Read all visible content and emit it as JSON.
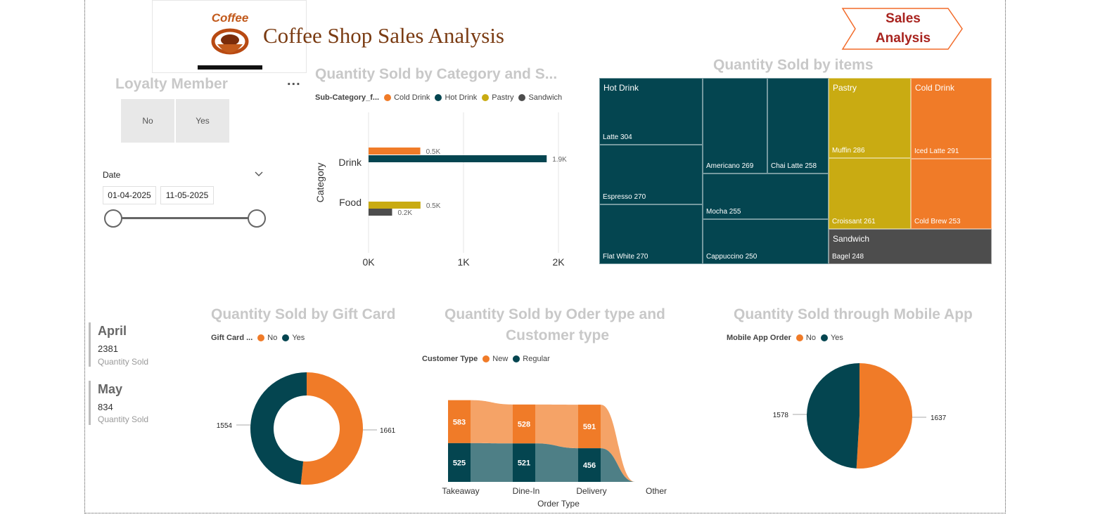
{
  "header": {
    "title": "Coffee Shop Sales Analysis",
    "logo_text": "Coffee",
    "nav_button": {
      "line1": "Sales",
      "line2": "Analysis"
    }
  },
  "loyalty": {
    "title": "Loyalty Member",
    "more": "...",
    "options": [
      "No",
      "Yes"
    ]
  },
  "date_slicer": {
    "label": "Date",
    "start": "01-04-2025",
    "end": "11-05-2025",
    "range_fraction": [
      0,
      1
    ]
  },
  "kpis": [
    {
      "month": "April",
      "value": "2381",
      "label": "Quantity Sold"
    },
    {
      "month": "May",
      "value": "834",
      "label": "Quantity Sold"
    }
  ],
  "colors": {
    "cold_drink": "#F07B28",
    "hot_drink": "#044550",
    "pastry": "#C9AB12",
    "sandwich": "#4D4D4D",
    "light_orange": "#F5A367",
    "light_teal": "#4E7F86"
  },
  "bar_chart": {
    "title": "Quantity Sold by Category and S...",
    "legend_title": "Sub-Category_f...",
    "legend": [
      "Cold Drink",
      "Hot Drink",
      "Pastry",
      "Sandwich"
    ],
    "ylabel": "Category",
    "xticks": [
      "0K",
      "1K",
      "2K"
    ],
    "bar_labels": [
      "0.5K",
      "1.9K",
      "0.5K",
      "0.2K"
    ]
  },
  "treemap": {
    "title": "Quantity Sold by items",
    "groups": [
      "Hot Drink",
      "Pastry",
      "Cold Drink",
      "Sandwich"
    ],
    "items": {
      "latte": "Latte 304",
      "espresso": "Espresso 270",
      "flat_white": "Flat White 270",
      "americano": "Americano 269",
      "chai_latte": "Chai Latte 258",
      "mocha": "Mocha 255",
      "cappuccino": "Cappuccino 250",
      "muffin": "Muffin 286",
      "croissant": "Croissant 261",
      "iced_latte": "Iced Latte 291",
      "cold_brew": "Cold Brew 253",
      "bagel": "Bagel 248"
    }
  },
  "gift_card": {
    "title": "Quantity Sold by Gift Card",
    "legend_title": "Gift Card ...",
    "legend": [
      "No",
      "Yes"
    ],
    "labels": {
      "no": "1661",
      "yes": "1554"
    }
  },
  "order_type": {
    "title_line1": "Quantity Sold by Oder type and",
    "title_line2": "Customer type",
    "legend_title": "Customer Type",
    "legend": [
      "New",
      "Regular"
    ],
    "xlabel": "Order Type",
    "categories": [
      "Takeaway",
      "Dine-In",
      "Delivery",
      "Other"
    ],
    "labels_new": [
      "583",
      "528",
      "591"
    ],
    "labels_regular": [
      "525",
      "521",
      "456"
    ]
  },
  "mobile_app": {
    "title": "Quantity Sold through Mobile App",
    "legend_title": "Mobile App Order",
    "legend": [
      "No",
      "Yes"
    ],
    "labels": {
      "no": "1637",
      "yes": "1578"
    }
  },
  "chart_data": [
    {
      "type": "bar",
      "title": "Quantity Sold by Category and S...",
      "ylabel": "Category",
      "categories": [
        "Drink",
        "Food"
      ],
      "series": [
        {
          "name": "Cold Drink",
          "values": [
            545,
            0
          ]
        },
        {
          "name": "Hot Drink",
          "values": [
            1876,
            0
          ]
        },
        {
          "name": "Pastry",
          "values": [
            0,
            547
          ]
        },
        {
          "name": "Sandwich",
          "values": [
            0,
            248
          ]
        }
      ],
      "xlim": [
        0,
        2000
      ],
      "orientation": "horizontal"
    },
    {
      "type": "heatmap",
      "title": "Quantity Sold by items",
      "items": [
        {
          "group": "Hot Drink",
          "name": "Latte",
          "value": 304
        },
        {
          "group": "Hot Drink",
          "name": "Espresso",
          "value": 270
        },
        {
          "group": "Hot Drink",
          "name": "Flat White",
          "value": 270
        },
        {
          "group": "Hot Drink",
          "name": "Americano",
          "value": 269
        },
        {
          "group": "Hot Drink",
          "name": "Chai Latte",
          "value": 258
        },
        {
          "group": "Hot Drink",
          "name": "Mocha",
          "value": 255
        },
        {
          "group": "Hot Drink",
          "name": "Cappuccino",
          "value": 250
        },
        {
          "group": "Pastry",
          "name": "Muffin",
          "value": 286
        },
        {
          "group": "Pastry",
          "name": "Croissant",
          "value": 261
        },
        {
          "group": "Cold Drink",
          "name": "Iced Latte",
          "value": 291
        },
        {
          "group": "Cold Drink",
          "name": "Cold Brew",
          "value": 253
        },
        {
          "group": "Sandwich",
          "name": "Bagel",
          "value": 248
        }
      ]
    },
    {
      "type": "pie",
      "title": "Quantity Sold by Gift Card",
      "categories": [
        "No",
        "Yes"
      ],
      "values": [
        1661,
        1554
      ],
      "donut": true
    },
    {
      "type": "area",
      "title": "Quantity Sold by Oder type and Customer type",
      "xlabel": "Order Type",
      "categories": [
        "Takeaway",
        "Dine-In",
        "Delivery",
        "Other"
      ],
      "series": [
        {
          "name": "New",
          "values": [
            583,
            528,
            591,
            0
          ]
        },
        {
          "name": "Regular",
          "values": [
            525,
            521,
            456,
            0
          ]
        }
      ]
    },
    {
      "type": "pie",
      "title": "Quantity Sold through Mobile App",
      "categories": [
        "No",
        "Yes"
      ],
      "values": [
        1637,
        1578
      ]
    }
  ]
}
